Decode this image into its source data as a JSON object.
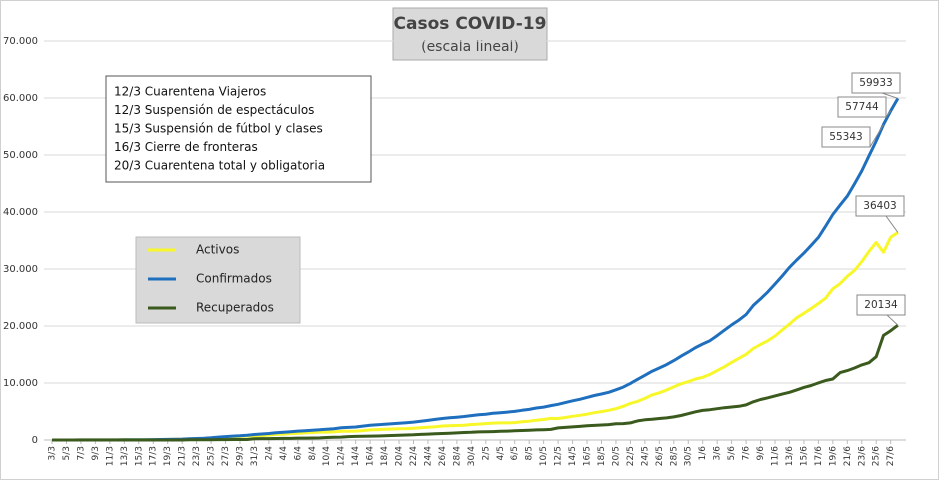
{
  "chart_data": {
    "type": "line",
    "title": "Casos  COVID-19",
    "subtitle": "(escala lineal)",
    "annotations": [
      "12/3 Cuarentena Viajeros",
      "12/3 Suspensión de espectáculos",
      "15/3 Suspensión de fútbol y clases",
      "16/3 Cierre de fronteras",
      "20/3 Cuarentena total y obligatoria"
    ],
    "categories": [
      "3/3",
      null,
      "5/3",
      null,
      "7/3",
      null,
      "9/3",
      null,
      "11/3",
      null,
      "13/3",
      null,
      "15/3",
      null,
      "17/3",
      null,
      "19/3",
      null,
      "21/3",
      null,
      "23/3",
      null,
      "25/3",
      null,
      "27/3",
      null,
      "29/3",
      null,
      "31/3",
      null,
      "2/4",
      null,
      "4/4",
      null,
      "6/4",
      null,
      "8/4",
      null,
      "10/4",
      null,
      "12/4",
      null,
      "14/4",
      null,
      "16/4",
      null,
      "18/4",
      null,
      "20/4",
      null,
      "22/4",
      null,
      "24/4",
      null,
      "26/4",
      null,
      "28/4",
      null,
      "30/4",
      null,
      "2/5",
      null,
      "4/5",
      null,
      "6/5",
      null,
      "8/5",
      null,
      "10/5",
      null,
      "12/5",
      null,
      "14/5",
      null,
      "16/5",
      null,
      "18/5",
      null,
      "20/5",
      null,
      "22/5",
      null,
      "24/5",
      null,
      "26/5",
      null,
      "28/5",
      null,
      "30/5",
      null,
      "1/6",
      null,
      "3/6",
      null,
      "5/6",
      null,
      "7/6",
      null,
      "9/6",
      null,
      "11/6",
      null,
      "13/6",
      null,
      "15/6",
      null,
      "17/6",
      null,
      "19/6",
      null,
      "21/6",
      null,
      "23/6",
      null,
      "25/6",
      null,
      "27/6",
      null
    ],
    "series": [
      {
        "name": "Activos",
        "color": "#f7f72a",
        "values": [
          1,
          1,
          2,
          8,
          9,
          11,
          11,
          15,
          17,
          19,
          29,
          32,
          43,
          53,
          61,
          75,
          93,
          122,
          152,
          193,
          233,
          244,
          329,
          427,
          503,
          596,
          640,
          709,
          714,
          787,
          857,
          978,
          1034,
          1127,
          1185,
          1245,
          1312,
          1378,
          1384,
          1426,
          1537,
          1522,
          1558,
          1654,
          1766,
          1830,
          1889,
          1922,
          1961,
          1999,
          2070,
          2160,
          2244,
          2321,
          2455,
          2507,
          2551,
          2601,
          2716,
          2786,
          2869,
          2972,
          3002,
          3001,
          3060,
          3188,
          3291,
          3475,
          3600,
          3782,
          3766,
          3940,
          4163,
          4328,
          4535,
          4782,
          4975,
          5203,
          5486,
          5913,
          6417,
          6777,
          7296,
          7908,
          8287,
          8778,
          9315,
          9854,
          10233,
          10699,
          11001,
          11500,
          12167,
          12846,
          13609,
          14329,
          15041,
          16046,
          16754,
          17397,
          18249,
          19296,
          20330,
          21437,
          22232,
          23065,
          23946,
          24876,
          26527,
          27440,
          28716,
          29757,
          31292,
          33094,
          34651,
          32948,
          35567,
          36403
        ]
      },
      {
        "name": "Confirmados",
        "color": "#1f6fbf",
        "values": [
          1,
          1,
          2,
          8,
          9,
          12,
          12,
          17,
          19,
          21,
          31,
          34,
          45,
          56,
          65,
          79,
          97,
          128,
          158,
          225,
          266,
          301,
          387,
          502,
          589,
          690,
          745,
          820,
          966,
          1054,
          1133,
          1265,
          1353,
          1451,
          1554,
          1628,
          1715,
          1795,
          1894,
          1975,
          2142,
          2208,
          2277,
          2443,
          2571,
          2669,
          2758,
          2839,
          2941,
          3031,
          3144,
          3288,
          3435,
          3607,
          3780,
          3892,
          4003,
          4127,
          4285,
          4428,
          4532,
          4681,
          4783,
          4887,
          5020,
          5208,
          5371,
          5611,
          5776,
          6034,
          6265,
          6563,
          6879,
          7134,
          7479,
          7805,
          8068,
          8371,
          8809,
          9283,
          9931,
          10649,
          11353,
          12076,
          12628,
          13228,
          13933,
          14702,
          15419,
          16214,
          16838,
          17415,
          18319,
          19268,
          20197,
          21037,
          22020,
          23620,
          24761,
          25987,
          27373,
          28764,
          30295,
          31577,
          32785,
          34159,
          35552,
          37510,
          39570,
          41204,
          42785,
          44931,
          47216,
          49851,
          52457,
          55343,
          57744,
          59933
        ]
      },
      {
        "name": "Recuperados",
        "color": "#3b5a1d",
        "values": [
          0,
          0,
          0,
          0,
          0,
          0,
          0,
          0,
          0,
          0,
          0,
          0,
          0,
          0,
          0,
          0,
          0,
          3,
          3,
          27,
          27,
          52,
          52,
          63,
          72,
          80,
          91,
          91,
          228,
          240,
          248,
          256,
          279,
          280,
          325,
          338,
          358,
          365,
          440,
          468,
          515,
          596,
          630,
          666,
          685,
          709,
          737,
          785,
          839,
          870,
          919,
          976,
          1030,
          1107,
          1140,
          1192,
          1245,
          1318,
          1354,
          1425,
          1442,
          1477,
          1520,
          1557,
          1611,
          1664,
          1714,
          1766,
          1803,
          1852,
          2116,
          2218,
          2304,
          2385,
          2497,
          2569,
          2636,
          2698,
          2837,
          2879,
          3001,
          3359,
          3546,
          3640,
          3780,
          3881,
          4047,
          4291,
          4617,
          4945,
          5197,
          5323,
          5492,
          5662,
          5789,
          5908,
          6150,
          6693,
          7107,
          7404,
          7735,
          8046,
          8365,
          8786,
          9232,
          9566,
          10021,
          10445,
          10706,
          11823,
          12167,
          12638,
          13172,
          13555,
          14620,
          18352,
          19173,
          20134
        ]
      }
    ],
    "ylim": [
      0,
      70000
    ],
    "yticks": [
      0,
      {
        "value": 10000,
        "label": "10.000"
      },
      {
        "value": 20000,
        "label": "20.000"
      },
      {
        "value": 30000,
        "label": "30.000"
      },
      {
        "value": 40000,
        "label": "40.000"
      },
      {
        "value": 50000,
        "label": "50.000"
      },
      {
        "value": 60000,
        "label": "60.000"
      },
      {
        "value": 70000,
        "label": "70.000"
      }
    ],
    "grid": true
  }
}
